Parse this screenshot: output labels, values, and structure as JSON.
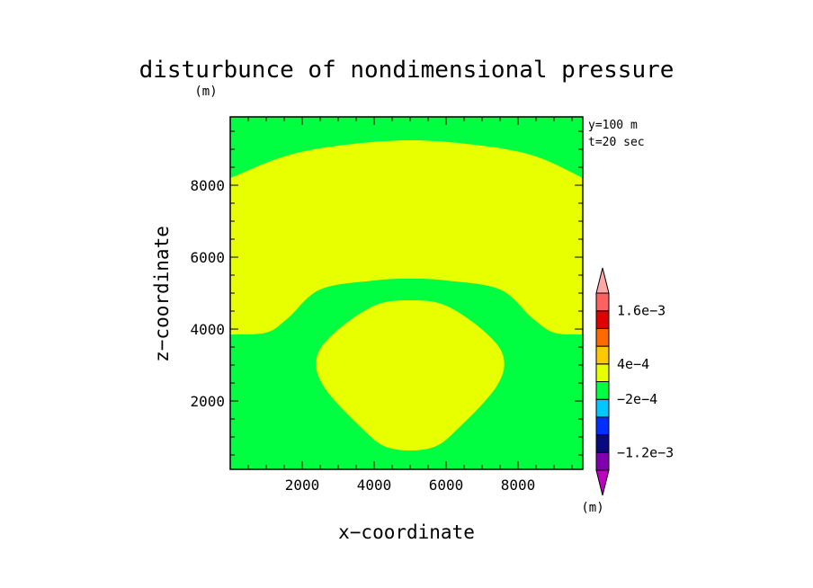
{
  "chart_data": {
    "type": "contour",
    "title": "disturbunce of nondimensional pressure",
    "title_unit": "(m)",
    "xlabel": "x−coordinate",
    "ylabel": "z−coordinate",
    "xlim": [
      0,
      9800
    ],
    "ylim": [
      100,
      9900
    ],
    "x_ticks": [
      2000,
      4000,
      6000,
      8000
    ],
    "y_ticks": [
      2000,
      4000,
      6000,
      8000
    ],
    "info_lines": [
      "y=100 m",
      "t=20 sec"
    ],
    "colorbar": {
      "unit": "(m)",
      "levels": [
        -0.0016,
        -0.0012,
        -0.0008,
        -0.0004,
        -0.0002,
        0,
        0.0004,
        0.0008,
        0.0012,
        0.0016,
        0.002
      ],
      "colors": [
        "#c000c0",
        "#8000b0",
        "#0a0a80",
        "#0030ff",
        "#00c8ff",
        "#00ff40",
        "#e8ff00",
        "#ffc800",
        "#ff6a00",
        "#e00000",
        "#ff6060",
        "#ffa8a8"
      ],
      "tick_labels": [
        {
          "label": "1.6e−3",
          "value": 0.0016
        },
        {
          "label": "4e−4",
          "value": 0.0004
        },
        {
          "label": "−2e−4",
          "value": -0.0002
        },
        {
          "label": "−1.2e−3",
          "value": -0.0012
        }
      ]
    },
    "regions": [
      {
        "name": "background",
        "level_range": "-2e-4 to 0",
        "color": "#00ff40"
      },
      {
        "name": "upper-band",
        "level_range": "0 to 4e-4",
        "color": "#e8ff00",
        "top_boundary": [
          [
            0,
            8200
          ],
          [
            1500,
            8800
          ],
          [
            3000,
            9100
          ],
          [
            5000,
            9250
          ],
          [
            7000,
            9100
          ],
          [
            8500,
            8800
          ],
          [
            9800,
            8200
          ]
        ],
        "bottom_boundary": [
          [
            0,
            3850
          ],
          [
            1000,
            3900
          ],
          [
            1600,
            4300
          ],
          [
            2500,
            5100
          ],
          [
            4000,
            5350
          ],
          [
            5000,
            5400
          ],
          [
            6000,
            5350
          ],
          [
            7500,
            5100
          ],
          [
            8400,
            4300
          ],
          [
            9000,
            3900
          ],
          [
            9800,
            3850
          ]
        ]
      },
      {
        "name": "central-bubble",
        "level_range": "0 to 4e-4",
        "color": "#e8ff00",
        "boundary": [
          [
            5000,
            4800
          ],
          [
            6000,
            4650
          ],
          [
            7100,
            3900
          ],
          [
            7600,
            3200
          ],
          [
            7400,
            2400
          ],
          [
            6400,
            1300
          ],
          [
            5600,
            700
          ],
          [
            4400,
            700
          ],
          [
            3600,
            1300
          ],
          [
            2600,
            2400
          ],
          [
            2400,
            3200
          ],
          [
            2900,
            3900
          ],
          [
            4000,
            4650
          ]
        ]
      }
    ]
  }
}
